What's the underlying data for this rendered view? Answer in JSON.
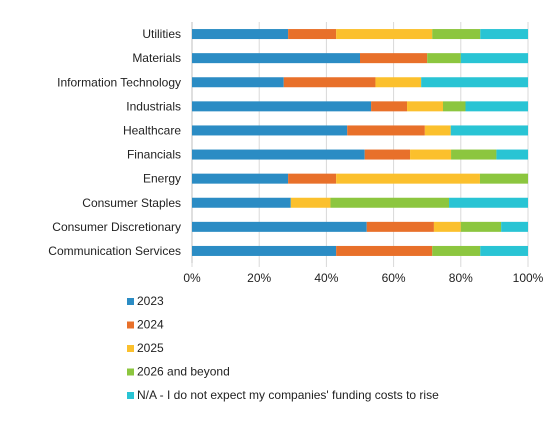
{
  "chart_data": {
    "type": "bar",
    "orientation": "horizontal",
    "stacked": true,
    "percent_stacked": true,
    "categories": [
      "Utilities",
      "Materials",
      "Information Technology",
      "Industrials",
      "Healthcare",
      "Financials",
      "Energy",
      "Consumer Staples",
      "Consumer Discretionary",
      "Communication Services"
    ],
    "series": [
      {
        "name": "2023",
        "color": "#2b8cc4",
        "values": [
          28.6,
          50,
          27.3,
          53.3,
          46.2,
          51.4,
          28.6,
          29.4,
          52,
          42.9
        ]
      },
      {
        "name": "2024",
        "color": "#e8702a",
        "values": [
          14.3,
          20,
          27.3,
          10.7,
          23.1,
          13.5,
          14.3,
          0,
          20,
          28.6
        ]
      },
      {
        "name": "2025",
        "color": "#fbc02d",
        "values": [
          28.6,
          0,
          13.6,
          10.7,
          7.7,
          12.2,
          42.8,
          11.8,
          8,
          0
        ]
      },
      {
        "name": "2026 and beyond",
        "color": "#8cc63f",
        "values": [
          14.3,
          10,
          0,
          6.7,
          0,
          13.5,
          14.3,
          35.3,
          12,
          14.3
        ]
      },
      {
        "name": "N/A - I do not expect my companies' funding costs to rise",
        "color": "#29c4d4",
        "values": [
          14.2,
          20,
          31.8,
          18.6,
          23,
          9.4,
          0,
          23.5,
          8,
          14.2
        ]
      }
    ],
    "x_ticks": [
      "0%",
      "20%",
      "40%",
      "60%",
      "80%",
      "100%"
    ],
    "xlim": [
      0,
      100
    ],
    "grid": true,
    "legend_position": "bottom",
    "title": "",
    "xlabel": "",
    "ylabel": ""
  }
}
